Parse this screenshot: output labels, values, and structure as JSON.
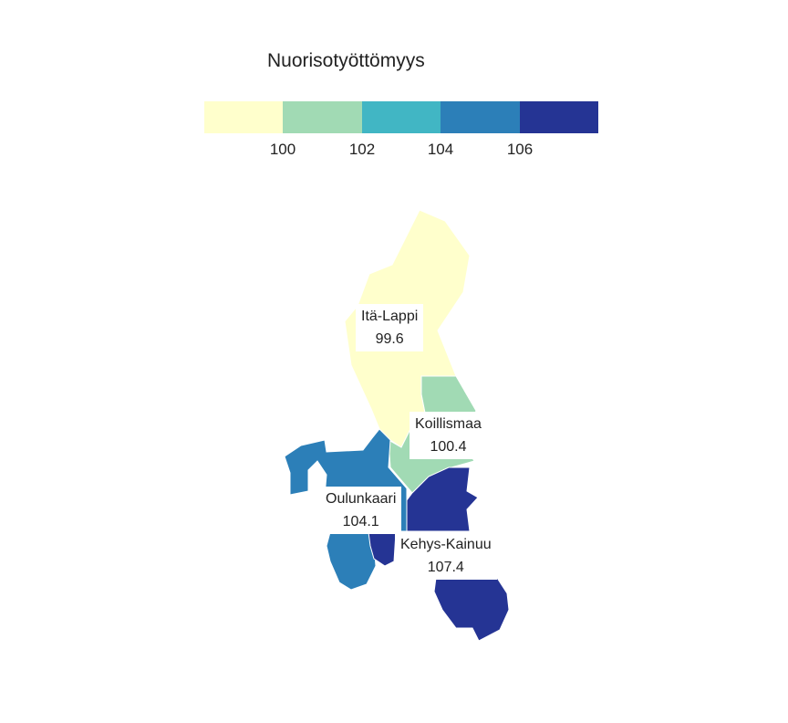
{
  "legend": {
    "title": "Nuorisotyöttömyys",
    "ticks": [
      "100",
      "102",
      "104",
      "106"
    ],
    "colors": [
      "#ffffcc",
      "#a1dab4",
      "#41b6c4",
      "#2c7fb8",
      "#253494"
    ]
  },
  "regions": [
    {
      "name": "Itä-Lappi",
      "value": "99.6",
      "color": "#ffffcc"
    },
    {
      "name": "Koillismaa",
      "value": "100.4",
      "color": "#a1dab4"
    },
    {
      "name": "Oulunkaari",
      "value": "104.1",
      "color": "#2c7fb8"
    },
    {
      "name": "Kehys-Kainuu",
      "value": "107.4",
      "color": "#253494"
    }
  ]
}
